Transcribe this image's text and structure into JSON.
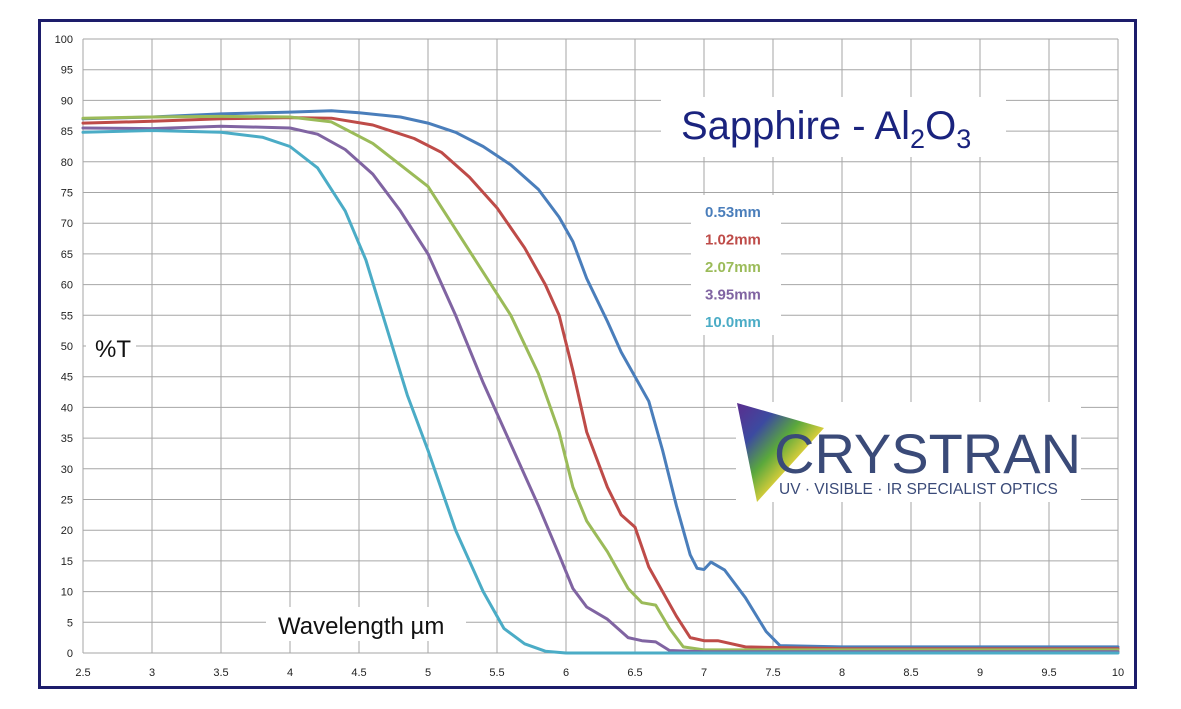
{
  "chart_data": {
    "type": "line",
    "title": "Sapphire - Al",
    "title_sub2": "2",
    "title_mid": "O",
    "title_sub3": "3",
    "xlabel": "Wavelength µm",
    "ylabel": "%T",
    "xlim": [
      2.5,
      10
    ],
    "ylim": [
      0,
      100
    ],
    "x_ticks": [
      "2.5",
      "3",
      "3.5",
      "4",
      "4.5",
      "5",
      "5.5",
      "6",
      "6.5",
      "7",
      "7.5",
      "8",
      "8.5",
      "9",
      "9.5",
      "10"
    ],
    "y_ticks": [
      "0",
      "5",
      "10",
      "15",
      "20",
      "25",
      "30",
      "35",
      "40",
      "45",
      "50",
      "55",
      "60",
      "65",
      "70",
      "75",
      "80",
      "85",
      "90",
      "95",
      "100"
    ],
    "grid": true,
    "legend_position": "top-right",
    "series": [
      {
        "name": "0.53mm",
        "color": "#4a7ebb",
        "points": [
          [
            2.5,
            87
          ],
          [
            3,
            87.3
          ],
          [
            3.5,
            87.8
          ],
          [
            4,
            88.1
          ],
          [
            4.3,
            88.3
          ],
          [
            4.5,
            88
          ],
          [
            4.8,
            87.3
          ],
          [
            5,
            86.3
          ],
          [
            5.2,
            84.8
          ],
          [
            5.4,
            82.5
          ],
          [
            5.6,
            79.5
          ],
          [
            5.8,
            75.5
          ],
          [
            5.95,
            71
          ],
          [
            6.05,
            67
          ],
          [
            6.15,
            61
          ],
          [
            6.3,
            54
          ],
          [
            6.4,
            49
          ],
          [
            6.5,
            45
          ],
          [
            6.6,
            41
          ],
          [
            6.7,
            33
          ],
          [
            6.8,
            24
          ],
          [
            6.9,
            16
          ],
          [
            6.95,
            13.8
          ],
          [
            7.0,
            13.6
          ],
          [
            7.05,
            14.8
          ],
          [
            7.15,
            13.5
          ],
          [
            7.3,
            9
          ],
          [
            7.45,
            3.5
          ],
          [
            7.55,
            1.2
          ],
          [
            8,
            1
          ],
          [
            10,
            1
          ]
        ]
      },
      {
        "name": "1.02mm",
        "color": "#be4b48",
        "points": [
          [
            2.5,
            86.3
          ],
          [
            3,
            86.6
          ],
          [
            3.5,
            87
          ],
          [
            4,
            87.2
          ],
          [
            4.3,
            87.1
          ],
          [
            4.6,
            86
          ],
          [
            4.9,
            83.8
          ],
          [
            5.1,
            81.5
          ],
          [
            5.3,
            77.5
          ],
          [
            5.5,
            72.5
          ],
          [
            5.7,
            66
          ],
          [
            5.85,
            60
          ],
          [
            5.95,
            55
          ],
          [
            6.05,
            46
          ],
          [
            6.15,
            36
          ],
          [
            6.3,
            27
          ],
          [
            6.4,
            22.5
          ],
          [
            6.5,
            20.5
          ],
          [
            6.6,
            14
          ],
          [
            6.7,
            10
          ],
          [
            6.8,
            6
          ],
          [
            6.9,
            2.5
          ],
          [
            7.0,
            2
          ],
          [
            7.1,
            2
          ],
          [
            7.3,
            1
          ],
          [
            8,
            0.7
          ],
          [
            10,
            0.7
          ]
        ]
      },
      {
        "name": "2.07mm",
        "color": "#9bbb59",
        "points": [
          [
            2.5,
            87.1
          ],
          [
            3,
            87.3
          ],
          [
            3.5,
            87.4
          ],
          [
            4,
            87.3
          ],
          [
            4.3,
            86.5
          ],
          [
            4.6,
            83
          ],
          [
            4.8,
            79.5
          ],
          [
            5,
            76
          ],
          [
            5.2,
            69
          ],
          [
            5.4,
            62
          ],
          [
            5.6,
            55
          ],
          [
            5.8,
            45.5
          ],
          [
            5.95,
            36
          ],
          [
            6.05,
            27
          ],
          [
            6.15,
            21.5
          ],
          [
            6.3,
            16.5
          ],
          [
            6.45,
            10.5
          ],
          [
            6.55,
            8.2
          ],
          [
            6.65,
            7.8
          ],
          [
            6.75,
            4
          ],
          [
            6.85,
            1
          ],
          [
            7,
            0.5
          ],
          [
            10,
            0.5
          ]
        ]
      },
      {
        "name": "3.95mm",
        "color": "#8064a2",
        "points": [
          [
            2.5,
            85.5
          ],
          [
            3,
            85.4
          ],
          [
            3.5,
            85.8
          ],
          [
            4,
            85.5
          ],
          [
            4.2,
            84.5
          ],
          [
            4.4,
            82
          ],
          [
            4.6,
            78
          ],
          [
            4.8,
            72
          ],
          [
            5,
            65
          ],
          [
            5.2,
            55
          ],
          [
            5.4,
            44
          ],
          [
            5.6,
            34
          ],
          [
            5.8,
            24
          ],
          [
            5.95,
            16
          ],
          [
            6.05,
            10.5
          ],
          [
            6.15,
            7.5
          ],
          [
            6.3,
            5.5
          ],
          [
            6.45,
            2.5
          ],
          [
            6.55,
            2
          ],
          [
            6.65,
            1.8
          ],
          [
            6.75,
            0.4
          ],
          [
            7,
            0.2
          ],
          [
            10,
            0.2
          ]
        ]
      },
      {
        "name": "10.0mm",
        "color": "#4bacc6",
        "points": [
          [
            2.5,
            84.8
          ],
          [
            3,
            85.1
          ],
          [
            3.5,
            84.8
          ],
          [
            3.8,
            84
          ],
          [
            4,
            82.5
          ],
          [
            4.2,
            79
          ],
          [
            4.4,
            72
          ],
          [
            4.55,
            64
          ],
          [
            4.7,
            53
          ],
          [
            4.85,
            42
          ],
          [
            5,
            33
          ],
          [
            5.2,
            20
          ],
          [
            5.4,
            10
          ],
          [
            5.55,
            4
          ],
          [
            5.7,
            1.5
          ],
          [
            5.85,
            0.3
          ],
          [
            6,
            0
          ],
          [
            10,
            0
          ]
        ]
      }
    ]
  },
  "logo": {
    "word": "CRYSTRAN",
    "tagline": "UV · VISIBLE · IR SPECIALIST OPTICS"
  }
}
